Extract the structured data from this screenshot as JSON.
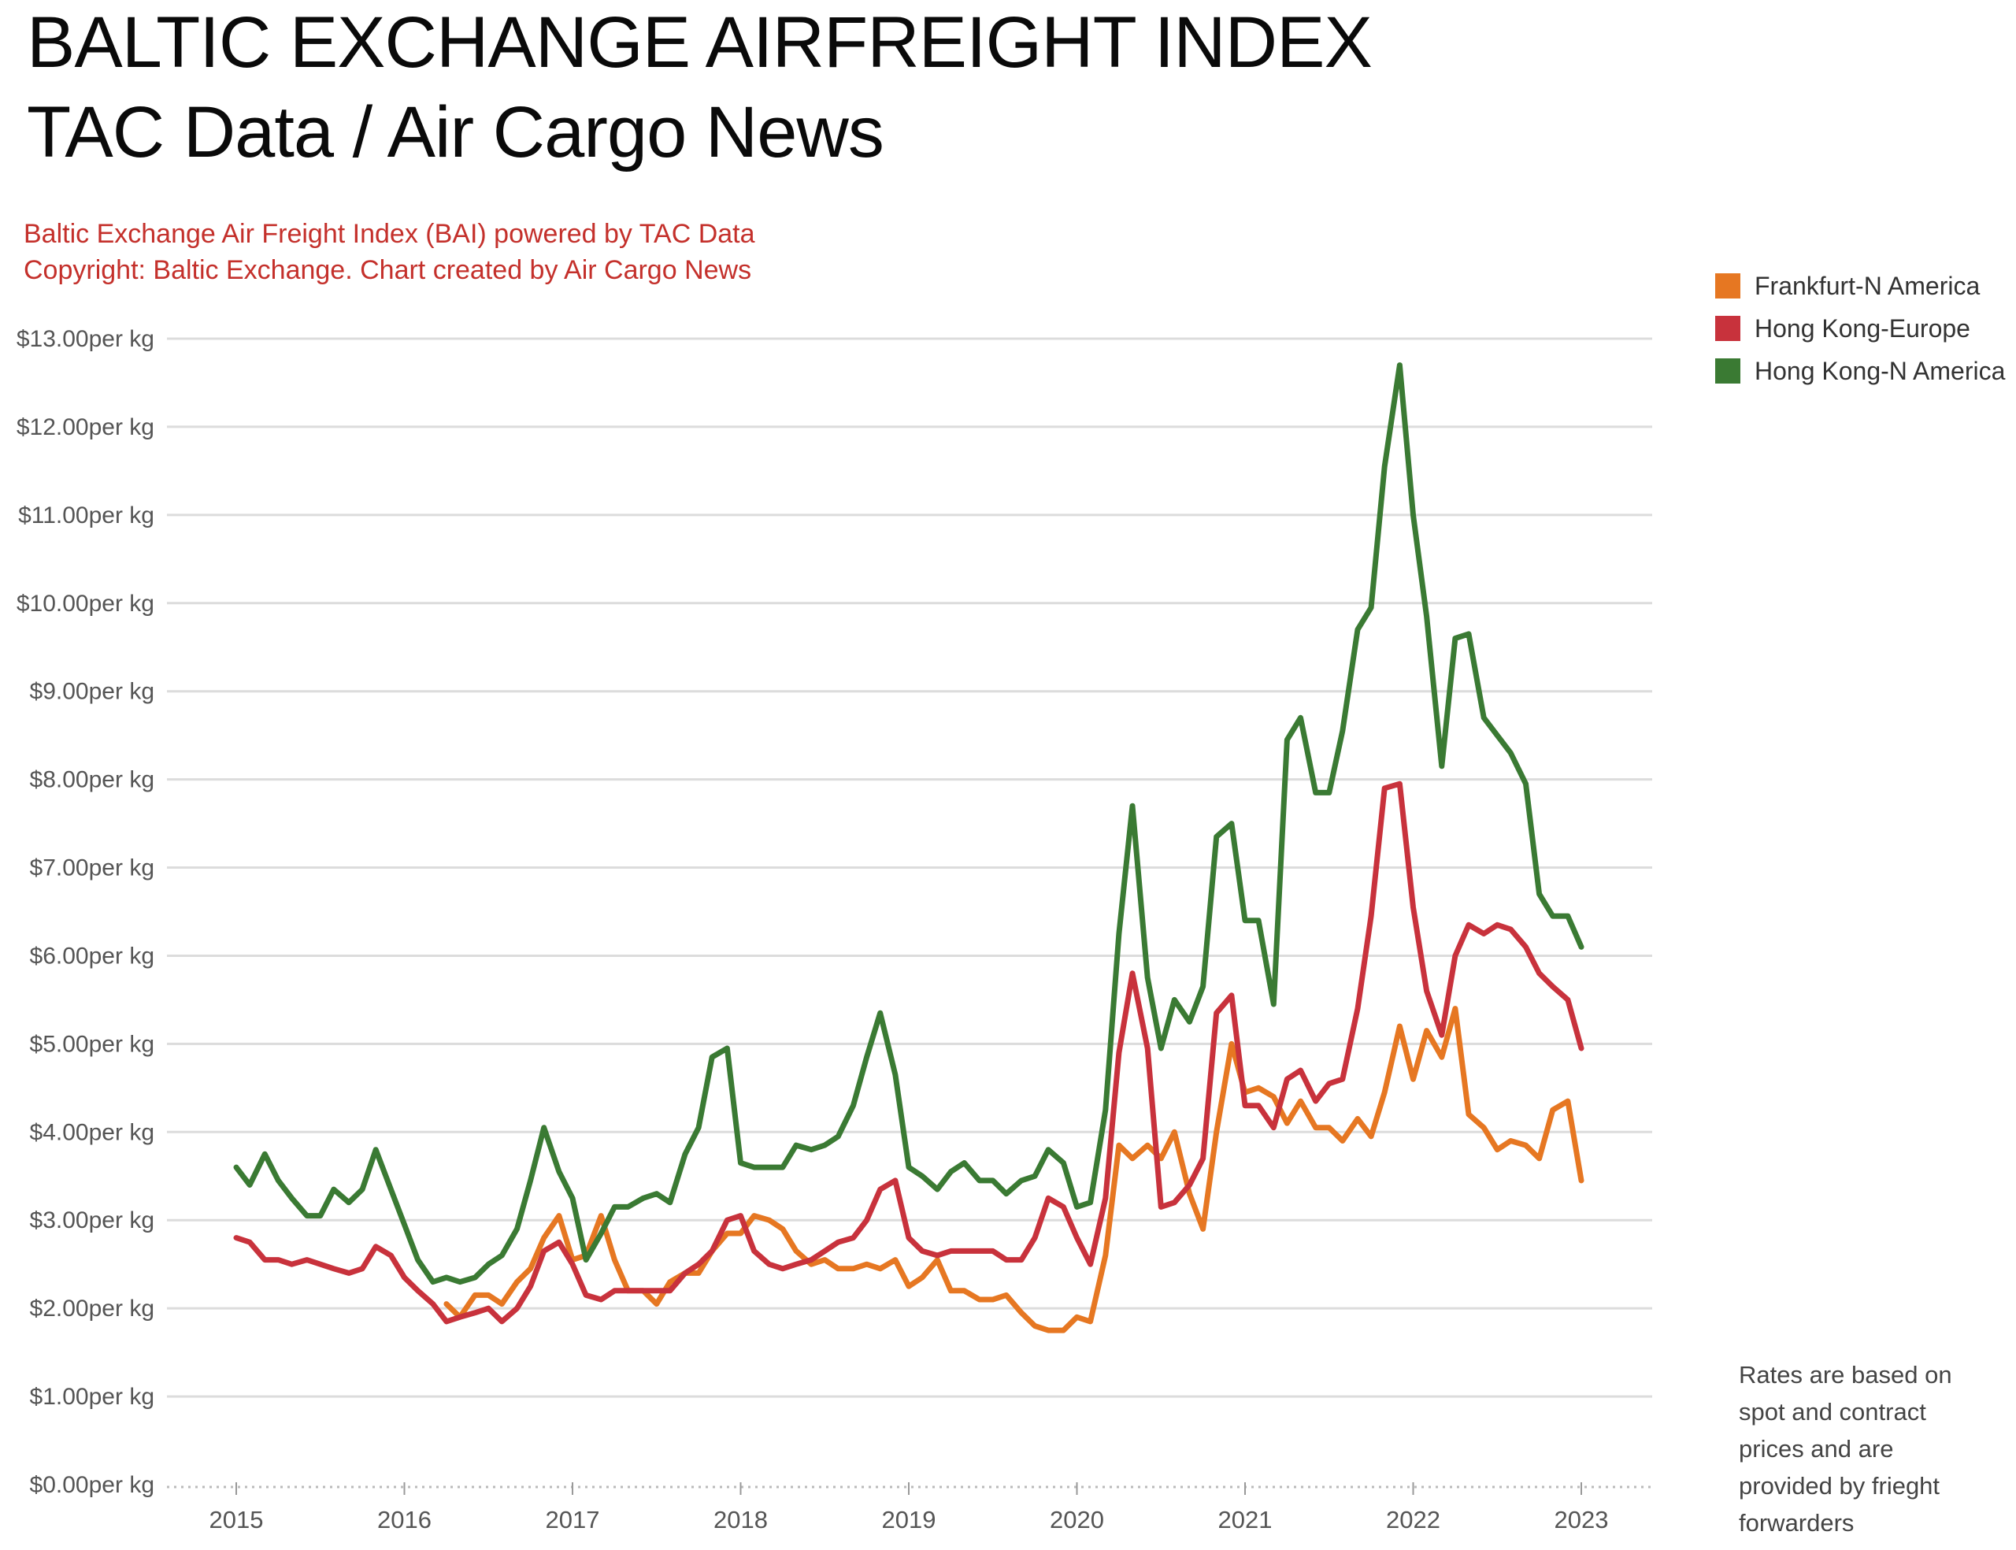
{
  "header": {
    "title_line1": "BALTIC EXCHANGE AIRFREIGHT INDEX",
    "title_line2": "TAC Data / Air Cargo News"
  },
  "source": {
    "line1": "Baltic Exchange Air Freight Index (BAI) powered by TAC Data",
    "line2": "Copyright: Baltic Exchange. Chart created by Air Cargo News"
  },
  "footnote": "Rates are based on spot and contract prices and are provided by frieght forwarders",
  "colors": {
    "frankfurt": "#e67722",
    "hongkong_europe": "#c8323c",
    "hongkong_namerica": "#3a7a33",
    "grid": "#dcdcdc",
    "source_text": "#c4302b"
  },
  "chart_data": {
    "type": "line",
    "y_tick_labels": [
      "$13.00per kg",
      "$12.00per kg",
      "$11.00per kg",
      "$10.00per kg",
      "$9.00per kg",
      "$8.00per kg",
      "$7.00per kg",
      "$6.00per kg",
      "$5.00per kg",
      "$4.00per kg",
      "$3.00per kg",
      "$2.00per kg",
      "$1.00per kg",
      "$0.00per kg"
    ],
    "y_tick_values": [
      13,
      12,
      11,
      10,
      9,
      8,
      7,
      6,
      5,
      4,
      3,
      2,
      1,
      0
    ],
    "x_tick_labels": [
      "2015",
      "2016",
      "2017",
      "2018",
      "2019",
      "2020",
      "2021",
      "2022",
      "2023"
    ],
    "x_tick_values": [
      2015,
      2016,
      2017,
      2018,
      2019,
      2020,
      2021,
      2022,
      2023
    ],
    "ylim": [
      0,
      13
    ],
    "xlim": [
      2015,
      2023
    ],
    "grid": true,
    "legend_position": "top-right",
    "series": [
      {
        "name": "Frankfurt-N America",
        "color": "#e67722",
        "points": [
          [
            2016.25,
            2.05
          ],
          [
            2016.33,
            1.9
          ],
          [
            2016.42,
            2.15
          ],
          [
            2016.5,
            2.15
          ],
          [
            2016.58,
            2.05
          ],
          [
            2016.67,
            2.3
          ],
          [
            2016.75,
            2.45
          ],
          [
            2016.83,
            2.8
          ],
          [
            2016.92,
            3.05
          ],
          [
            2017.0,
            2.55
          ],
          [
            2017.08,
            2.6
          ],
          [
            2017.17,
            3.05
          ],
          [
            2017.25,
            2.55
          ],
          [
            2017.33,
            2.2
          ],
          [
            2017.42,
            2.2
          ],
          [
            2017.5,
            2.05
          ],
          [
            2017.58,
            2.3
          ],
          [
            2017.67,
            2.4
          ],
          [
            2017.75,
            2.4
          ],
          [
            2017.83,
            2.65
          ],
          [
            2017.92,
            2.85
          ],
          [
            2018.0,
            2.85
          ],
          [
            2018.08,
            3.05
          ],
          [
            2018.17,
            3.0
          ],
          [
            2018.25,
            2.9
          ],
          [
            2018.33,
            2.65
          ],
          [
            2018.42,
            2.5
          ],
          [
            2018.5,
            2.55
          ],
          [
            2018.58,
            2.45
          ],
          [
            2018.67,
            2.45
          ],
          [
            2018.75,
            2.5
          ],
          [
            2018.83,
            2.45
          ],
          [
            2018.92,
            2.55
          ],
          [
            2019.0,
            2.25
          ],
          [
            2019.08,
            2.35
          ],
          [
            2019.17,
            2.55
          ],
          [
            2019.25,
            2.2
          ],
          [
            2019.33,
            2.2
          ],
          [
            2019.42,
            2.1
          ],
          [
            2019.5,
            2.1
          ],
          [
            2019.58,
            2.15
          ],
          [
            2019.67,
            1.95
          ],
          [
            2019.75,
            1.8
          ],
          [
            2019.83,
            1.75
          ],
          [
            2019.92,
            1.75
          ],
          [
            2020.0,
            1.9
          ],
          [
            2020.08,
            1.85
          ],
          [
            2020.17,
            2.6
          ],
          [
            2020.25,
            3.85
          ],
          [
            2020.33,
            3.7
          ],
          [
            2020.42,
            3.85
          ],
          [
            2020.5,
            3.7
          ],
          [
            2020.58,
            4.0
          ],
          [
            2020.67,
            3.3
          ],
          [
            2020.75,
            2.9
          ],
          [
            2020.83,
            4.0
          ],
          [
            2020.92,
            5.0
          ],
          [
            2021.0,
            4.45
          ],
          [
            2021.08,
            4.5
          ],
          [
            2021.17,
            4.4
          ],
          [
            2021.25,
            4.1
          ],
          [
            2021.33,
            4.35
          ],
          [
            2021.42,
            4.05
          ],
          [
            2021.5,
            4.05
          ],
          [
            2021.58,
            3.9
          ],
          [
            2021.67,
            4.15
          ],
          [
            2021.75,
            3.95
          ],
          [
            2021.83,
            4.45
          ],
          [
            2021.92,
            5.2
          ],
          [
            2022.0,
            4.6
          ],
          [
            2022.08,
            5.15
          ],
          [
            2022.17,
            4.85
          ],
          [
            2022.25,
            5.4
          ],
          [
            2022.33,
            4.2
          ],
          [
            2022.42,
            4.05
          ],
          [
            2022.5,
            3.8
          ],
          [
            2022.58,
            3.9
          ],
          [
            2022.67,
            3.85
          ],
          [
            2022.75,
            3.7
          ],
          [
            2022.83,
            4.25
          ],
          [
            2022.92,
            4.35
          ],
          [
            2023.0,
            3.45
          ]
        ]
      },
      {
        "name": "Hong Kong-Europe",
        "color": "#c8323c",
        "points": [
          [
            2015.0,
            2.8
          ],
          [
            2015.08,
            2.75
          ],
          [
            2015.17,
            2.55
          ],
          [
            2015.25,
            2.55
          ],
          [
            2015.33,
            2.5
          ],
          [
            2015.42,
            2.55
          ],
          [
            2015.5,
            2.5
          ],
          [
            2015.58,
            2.45
          ],
          [
            2015.67,
            2.4
          ],
          [
            2015.75,
            2.45
          ],
          [
            2015.83,
            2.7
          ],
          [
            2015.92,
            2.6
          ],
          [
            2016.0,
            2.35
          ],
          [
            2016.08,
            2.2
          ],
          [
            2016.17,
            2.05
          ],
          [
            2016.25,
            1.85
          ],
          [
            2016.33,
            1.9
          ],
          [
            2016.42,
            1.95
          ],
          [
            2016.5,
            2.0
          ],
          [
            2016.58,
            1.85
          ],
          [
            2016.67,
            2.0
          ],
          [
            2016.75,
            2.25
          ],
          [
            2016.83,
            2.65
          ],
          [
            2016.92,
            2.75
          ],
          [
            2017.0,
            2.5
          ],
          [
            2017.08,
            2.15
          ],
          [
            2017.17,
            2.1
          ],
          [
            2017.25,
            2.2
          ],
          [
            2017.33,
            2.2
          ],
          [
            2017.42,
            2.2
          ],
          [
            2017.5,
            2.2
          ],
          [
            2017.58,
            2.2
          ],
          [
            2017.67,
            2.4
          ],
          [
            2017.75,
            2.5
          ],
          [
            2017.83,
            2.65
          ],
          [
            2017.92,
            3.0
          ],
          [
            2018.0,
            3.05
          ],
          [
            2018.08,
            2.65
          ],
          [
            2018.17,
            2.5
          ],
          [
            2018.25,
            2.45
          ],
          [
            2018.33,
            2.5
          ],
          [
            2018.42,
            2.55
          ],
          [
            2018.5,
            2.65
          ],
          [
            2018.58,
            2.75
          ],
          [
            2018.67,
            2.8
          ],
          [
            2018.75,
            3.0
          ],
          [
            2018.83,
            3.35
          ],
          [
            2018.92,
            3.45
          ],
          [
            2019.0,
            2.8
          ],
          [
            2019.08,
            2.65
          ],
          [
            2019.17,
            2.6
          ],
          [
            2019.25,
            2.65
          ],
          [
            2019.33,
            2.65
          ],
          [
            2019.42,
            2.65
          ],
          [
            2019.5,
            2.65
          ],
          [
            2019.58,
            2.55
          ],
          [
            2019.67,
            2.55
          ],
          [
            2019.75,
            2.8
          ],
          [
            2019.83,
            3.25
          ],
          [
            2019.92,
            3.15
          ],
          [
            2020.0,
            2.8
          ],
          [
            2020.08,
            2.5
          ],
          [
            2020.17,
            3.25
          ],
          [
            2020.25,
            4.9
          ],
          [
            2020.33,
            5.8
          ],
          [
            2020.42,
            4.95
          ],
          [
            2020.5,
            3.15
          ],
          [
            2020.58,
            3.2
          ],
          [
            2020.67,
            3.4
          ],
          [
            2020.75,
            3.7
          ],
          [
            2020.83,
            5.35
          ],
          [
            2020.92,
            5.55
          ],
          [
            2021.0,
            4.3
          ],
          [
            2021.08,
            4.3
          ],
          [
            2021.17,
            4.05
          ],
          [
            2021.25,
            4.6
          ],
          [
            2021.33,
            4.7
          ],
          [
            2021.42,
            4.35
          ],
          [
            2021.5,
            4.55
          ],
          [
            2021.58,
            4.6
          ],
          [
            2021.67,
            5.4
          ],
          [
            2021.75,
            6.45
          ],
          [
            2021.83,
            7.9
          ],
          [
            2021.92,
            7.95
          ],
          [
            2022.0,
            6.55
          ],
          [
            2022.08,
            5.6
          ],
          [
            2022.17,
            5.1
          ],
          [
            2022.25,
            6.0
          ],
          [
            2022.33,
            6.35
          ],
          [
            2022.42,
            6.25
          ],
          [
            2022.5,
            6.35
          ],
          [
            2022.58,
            6.3
          ],
          [
            2022.67,
            6.1
          ],
          [
            2022.75,
            5.8
          ],
          [
            2022.83,
            5.65
          ],
          [
            2022.92,
            5.5
          ],
          [
            2023.0,
            4.95
          ]
        ]
      },
      {
        "name": "Hong Kong-N America",
        "color": "#3a7a33",
        "points": [
          [
            2015.0,
            3.6
          ],
          [
            2015.08,
            3.4
          ],
          [
            2015.17,
            3.75
          ],
          [
            2015.25,
            3.45
          ],
          [
            2015.33,
            3.25
          ],
          [
            2015.42,
            3.05
          ],
          [
            2015.5,
            3.05
          ],
          [
            2015.58,
            3.35
          ],
          [
            2015.67,
            3.2
          ],
          [
            2015.75,
            3.35
          ],
          [
            2015.83,
            3.8
          ],
          [
            2015.92,
            3.35
          ],
          [
            2016.0,
            2.95
          ],
          [
            2016.08,
            2.55
          ],
          [
            2016.17,
            2.3
          ],
          [
            2016.25,
            2.35
          ],
          [
            2016.33,
            2.3
          ],
          [
            2016.42,
            2.35
          ],
          [
            2016.5,
            2.5
          ],
          [
            2016.58,
            2.6
          ],
          [
            2016.67,
            2.9
          ],
          [
            2016.75,
            3.45
          ],
          [
            2016.83,
            4.05
          ],
          [
            2016.92,
            3.55
          ],
          [
            2017.0,
            3.25
          ],
          [
            2017.08,
            2.55
          ],
          [
            2017.17,
            2.85
          ],
          [
            2017.25,
            3.15
          ],
          [
            2017.33,
            3.15
          ],
          [
            2017.42,
            3.25
          ],
          [
            2017.5,
            3.3
          ],
          [
            2017.58,
            3.2
          ],
          [
            2017.67,
            3.75
          ],
          [
            2017.75,
            4.05
          ],
          [
            2017.83,
            4.85
          ],
          [
            2017.92,
            4.95
          ],
          [
            2018.0,
            3.65
          ],
          [
            2018.08,
            3.6
          ],
          [
            2018.17,
            3.6
          ],
          [
            2018.25,
            3.6
          ],
          [
            2018.33,
            3.85
          ],
          [
            2018.42,
            3.8
          ],
          [
            2018.5,
            3.85
          ],
          [
            2018.58,
            3.95
          ],
          [
            2018.67,
            4.3
          ],
          [
            2018.75,
            4.85
          ],
          [
            2018.83,
            5.35
          ],
          [
            2018.92,
            4.65
          ],
          [
            2019.0,
            3.6
          ],
          [
            2019.08,
            3.5
          ],
          [
            2019.17,
            3.35
          ],
          [
            2019.25,
            3.55
          ],
          [
            2019.33,
            3.65
          ],
          [
            2019.42,
            3.45
          ],
          [
            2019.5,
            3.45
          ],
          [
            2019.58,
            3.3
          ],
          [
            2019.67,
            3.45
          ],
          [
            2019.75,
            3.5
          ],
          [
            2019.83,
            3.8
          ],
          [
            2019.92,
            3.65
          ],
          [
            2020.0,
            3.15
          ],
          [
            2020.08,
            3.2
          ],
          [
            2020.17,
            4.25
          ],
          [
            2020.25,
            6.25
          ],
          [
            2020.33,
            7.7
          ],
          [
            2020.42,
            5.75
          ],
          [
            2020.5,
            4.95
          ],
          [
            2020.58,
            5.5
          ],
          [
            2020.67,
            5.25
          ],
          [
            2020.75,
            5.65
          ],
          [
            2020.83,
            7.35
          ],
          [
            2020.92,
            7.5
          ],
          [
            2021.0,
            6.4
          ],
          [
            2021.08,
            6.4
          ],
          [
            2021.17,
            5.45
          ],
          [
            2021.25,
            8.45
          ],
          [
            2021.33,
            8.7
          ],
          [
            2021.42,
            7.85
          ],
          [
            2021.5,
            7.85
          ],
          [
            2021.58,
            8.55
          ],
          [
            2021.67,
            9.7
          ],
          [
            2021.75,
            9.95
          ],
          [
            2021.83,
            11.55
          ],
          [
            2021.92,
            12.7
          ],
          [
            2022.0,
            11.0
          ],
          [
            2022.08,
            9.85
          ],
          [
            2022.17,
            8.15
          ],
          [
            2022.25,
            9.6
          ],
          [
            2022.33,
            9.65
          ],
          [
            2022.42,
            8.7
          ],
          [
            2022.5,
            8.5
          ],
          [
            2022.58,
            8.3
          ],
          [
            2022.67,
            7.95
          ],
          [
            2022.75,
            6.7
          ],
          [
            2022.83,
            6.45
          ],
          [
            2022.92,
            6.45
          ],
          [
            2023.0,
            6.1
          ]
        ]
      }
    ]
  }
}
